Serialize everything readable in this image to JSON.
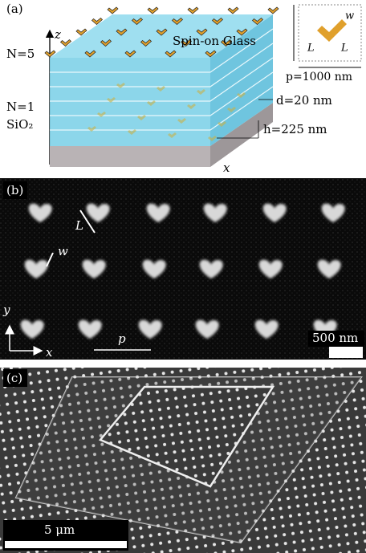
{
  "panel_a": {
    "label": "(a)",
    "z_axis": "z",
    "x_axis": "x",
    "top_layer": "N=5",
    "bottom_layer": "N=1",
    "substrate": "SiO₂",
    "glass": "Spin-on Glass",
    "spacing": "d=20 nm",
    "height": "h=225 nm",
    "inset": {
      "w": "w",
      "L_left": "L",
      "L_right": "L",
      "period": "p=1000 nm"
    }
  },
  "panel_b": {
    "label": "(b)",
    "L": "L",
    "w": "w",
    "y_axis": "y",
    "x_axis": "x",
    "p": "p",
    "scale": "500 nm"
  },
  "panel_c": {
    "label": "(c)",
    "scale": "5 μm"
  }
}
